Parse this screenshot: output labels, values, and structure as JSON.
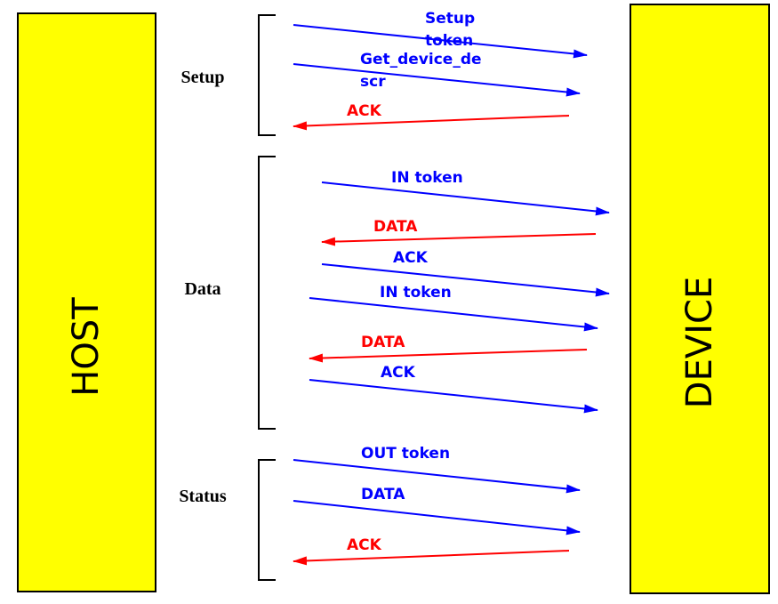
{
  "host": {
    "label": "HOST"
  },
  "device": {
    "label": "DEVICE"
  },
  "phases": [
    {
      "label": "Setup",
      "messages": [
        {
          "label": [
            "Setup",
            "token"
          ]
        },
        {
          "label": [
            "Get_device_de",
            "scr"
          ]
        },
        {
          "label": [
            "ACK"
          ]
        }
      ]
    },
    {
      "label": "Data",
      "messages": [
        {
          "label": [
            "IN token"
          ]
        },
        {
          "label": [
            "DATA"
          ]
        },
        {
          "label": [
            "ACK"
          ]
        },
        {
          "label": [
            "IN token"
          ]
        },
        {
          "label": [
            "DATA"
          ]
        },
        {
          "label": [
            "ACK"
          ]
        }
      ]
    },
    {
      "label": "Status",
      "messages": [
        {
          "label": [
            "OUT token"
          ]
        },
        {
          "label": [
            "DATA"
          ]
        },
        {
          "label": [
            "ACK"
          ]
        }
      ]
    }
  ]
}
